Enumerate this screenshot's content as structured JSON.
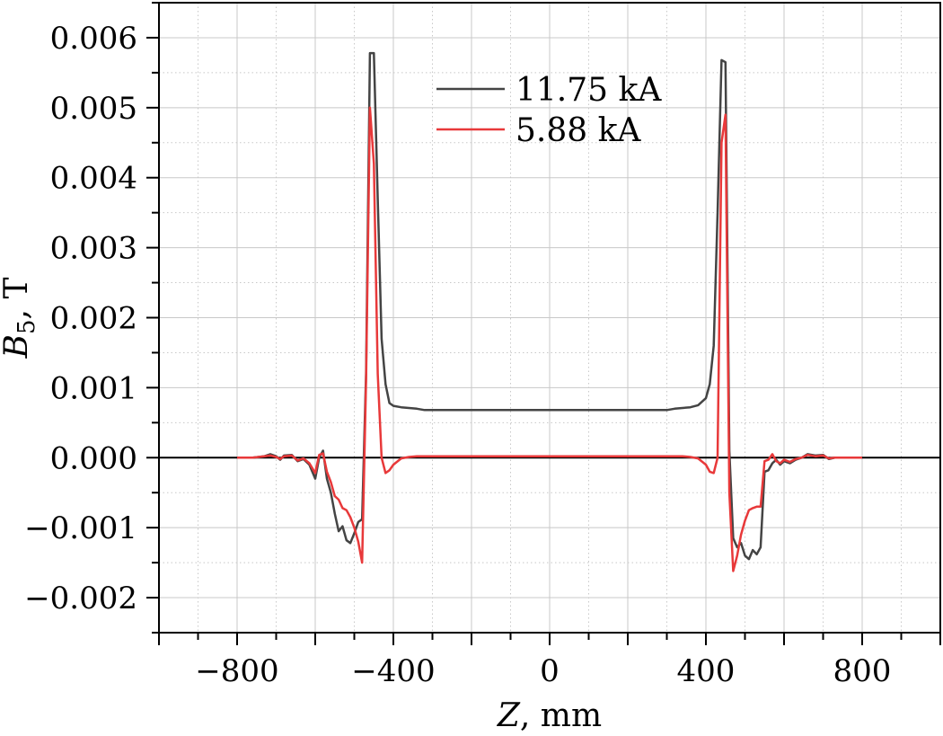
{
  "chart_data": {
    "type": "line",
    "xlabel": "Z, mm",
    "ylabel": "B5, T",
    "ylabel_main": "B",
    "ylabel_sub": "5",
    "ylabel_rest": ", T",
    "xlim": [
      -1000,
      1000
    ],
    "ylim": [
      -0.0025,
      0.0065
    ],
    "x_ticks": [
      -800,
      -400,
      0,
      400,
      800
    ],
    "x_tick_labels": [
      "−800",
      "−400",
      "0",
      "400",
      "800"
    ],
    "y_ticks": [
      -0.002,
      -0.001,
      0.0,
      0.001,
      0.002,
      0.003,
      0.004,
      0.005,
      0.006
    ],
    "y_tick_labels": [
      "−0.002",
      "−0.001",
      "0.000",
      "0.001",
      "0.002",
      "0.003",
      "0.004",
      "0.005",
      "0.006"
    ],
    "grid": true,
    "legend_position": "top-center",
    "series": [
      {
        "name": "11.75 kA",
        "color": "#444444",
        "x": [
          -800,
          -760,
          -730,
          -715,
          -700,
          -690,
          -680,
          -660,
          -645,
          -630,
          -615,
          -600,
          -590,
          -580,
          -570,
          -560,
          -550,
          -540,
          -530,
          -520,
          -510,
          -500,
          -490,
          -480,
          -470,
          -460,
          -450,
          -440,
          -430,
          -420,
          -410,
          -400,
          -380,
          -360,
          -340,
          -320,
          -300,
          -250,
          -200,
          -100,
          0,
          100,
          200,
          250,
          300,
          320,
          340,
          360,
          380,
          400,
          410,
          420,
          430,
          440,
          450,
          460,
          470,
          480,
          490,
          500,
          510,
          520,
          530,
          540,
          550,
          560,
          570,
          580,
          590,
          600,
          615,
          630,
          645,
          660,
          680,
          700,
          715,
          730,
          760,
          800
        ],
        "y": [
          0,
          0,
          2e-05,
          5e-05,
          2e-05,
          -3e-05,
          3e-05,
          4e-05,
          -5e-05,
          -2e-05,
          -0.0001,
          -0.0003,
          0,
          0.0001,
          -0.0003,
          -0.0005,
          -0.0008,
          -0.00105,
          -0.00098,
          -0.00118,
          -0.00122,
          -0.00108,
          -0.00092,
          -0.00088,
          0.0012,
          0.00578,
          0.00578,
          0.0037,
          0.0017,
          0.00105,
          0.00078,
          0.00074,
          0.00072,
          0.00071,
          0.0007,
          0.00068,
          0.00068,
          0.00068,
          0.00068,
          0.00068,
          0.00068,
          0.00068,
          0.00068,
          0.00068,
          0.00068,
          0.0007,
          0.00071,
          0.00072,
          0.00075,
          0.00085,
          0.00105,
          0.0016,
          0.0035,
          0.00568,
          0.00565,
          0.0001,
          -0.00115,
          -0.00128,
          -0.00122,
          -0.0014,
          -0.00145,
          -0.00132,
          -0.00138,
          -0.00128,
          -0.0002,
          -0.00018,
          -8e-05,
          -3e-05,
          -0.0001,
          -5e-05,
          -8e-05,
          -3e-05,
          0,
          5e-05,
          3e-05,
          4e-05,
          -2e-05,
          0,
          0,
          0
        ]
      },
      {
        "name": "5.88 kA",
        "color": "#e8393a",
        "x": [
          -800,
          -760,
          -730,
          -715,
          -700,
          -690,
          -680,
          -660,
          -645,
          -630,
          -615,
          -600,
          -590,
          -580,
          -570,
          -560,
          -550,
          -540,
          -530,
          -520,
          -510,
          -500,
          -490,
          -480,
          -470,
          -460,
          -450,
          -440,
          -430,
          -420,
          -410,
          -400,
          -380,
          -360,
          -340,
          -300,
          -200,
          0,
          200,
          300,
          340,
          360,
          380,
          400,
          410,
          420,
          430,
          440,
          450,
          460,
          470,
          480,
          490,
          500,
          510,
          520,
          530,
          540,
          550,
          560,
          570,
          580,
          590,
          600,
          615,
          630,
          645,
          660,
          680,
          700,
          715,
          730,
          760,
          800
        ],
        "y": [
          0,
          0,
          2e-05,
          3e-05,
          1e-05,
          -2e-05,
          2e-05,
          3e-05,
          -4e-05,
          -1e-05,
          -8e-05,
          -0.00022,
          4e-05,
          6e-05,
          -0.0002,
          -0.00035,
          -0.00055,
          -0.0006,
          -0.00072,
          -0.00075,
          -0.00085,
          -0.001,
          -0.0012,
          -0.0015,
          0.0011,
          0.005,
          0.0042,
          0.0012,
          0,
          -0.00022,
          -0.00018,
          -0.0001,
          -1e-05,
          1e-05,
          2e-05,
          2e-05,
          2e-05,
          2e-05,
          2e-05,
          2e-05,
          2e-05,
          1e-05,
          -1e-05,
          -0.0001,
          -0.0002,
          -0.00022,
          0,
          0.0045,
          0.0049,
          -0.0005,
          -0.00162,
          -0.0014,
          -0.0011,
          -0.0009,
          -0.00075,
          -0.00072,
          -0.0007,
          -0.0007,
          -5e-05,
          -3e-05,
          5e-05,
          -5e-05,
          -8e-05,
          -3e-05,
          -6e-05,
          -2e-05,
          0,
          4e-05,
          2e-05,
          3e-05,
          -1e-05,
          0,
          0,
          0
        ]
      }
    ]
  }
}
